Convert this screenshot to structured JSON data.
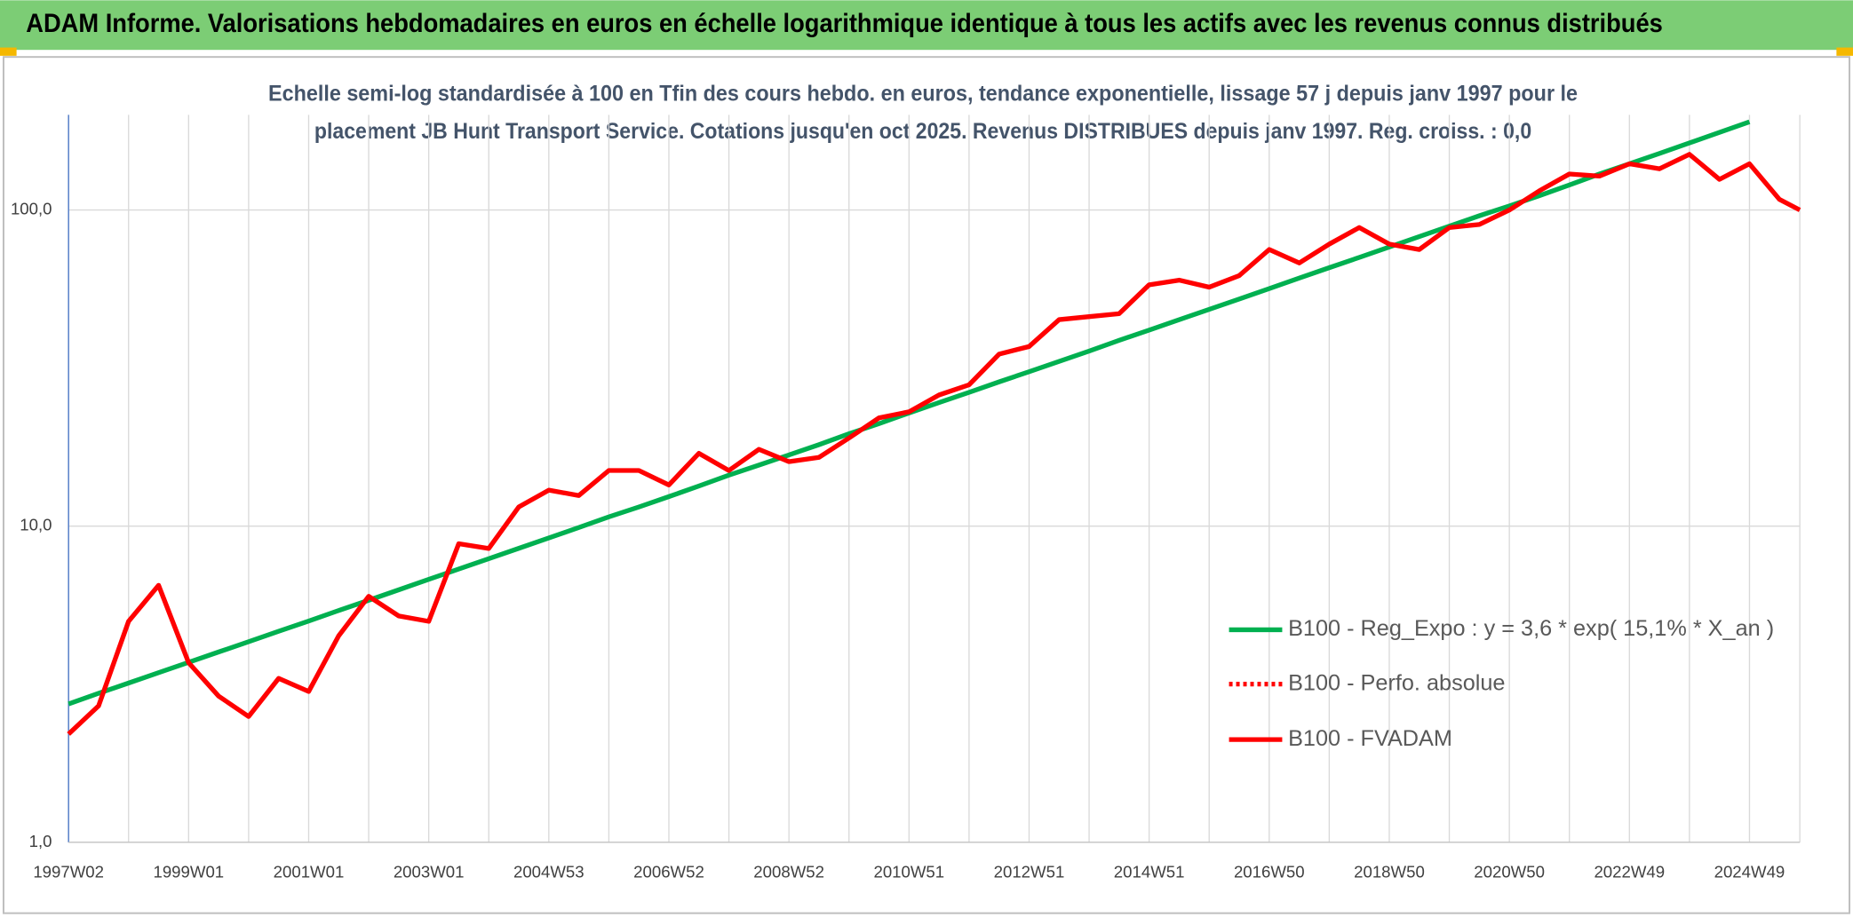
{
  "chart_data": {
    "type": "line",
    "title": "ADAM Informe. Valorisations hebdomadaires en euros en échelle logarithmique identique à tous les actifs avec les revenus connus distribués",
    "subtitle": [
      "Echelle semi-log standardisée à 100 en Tfin des cours hebdo. en euros, tendance exponentielle, lissage 57 j depuis janv 1997 pour le",
      "placement JB Hunt Transport Service. Cotations jusqu'en oct 2025. Revenus DISTRIBUES depuis janv 1997. Reg. croiss. : 0,0"
    ],
    "categories": [
      "1997W02",
      null,
      null,
      null,
      "1999W01",
      null,
      null,
      null,
      "2001W01",
      null,
      null,
      null,
      "2003W01",
      null,
      null,
      null,
      "2004W53",
      null,
      null,
      null,
      "2006W52",
      null,
      null,
      null,
      "2008W52",
      null,
      null,
      null,
      "2010W51",
      null,
      null,
      null,
      "2012W51",
      null,
      null,
      null,
      "2014W51",
      null,
      null,
      null,
      "2016W50",
      null,
      null,
      null,
      "2018W50",
      null,
      null,
      null,
      "2020W50",
      null,
      null,
      null,
      "2022W49",
      null,
      null,
      null,
      "2024W49",
      null,
      null
    ],
    "series": [
      {
        "name": "B100 - Reg_Expo : y = 3,6 * exp( 15,1% *  X_an )",
        "color": "#00b050",
        "style": "solid",
        "values": [
          2.74,
          2.96,
          3.19,
          3.44,
          3.71,
          4.0,
          4.31,
          4.65,
          5.01,
          5.41,
          5.83,
          6.29,
          6.79,
          7.32,
          7.89,
          8.51,
          9.18,
          9.9,
          10.7,
          11.5,
          12.4,
          13.4,
          14.5,
          15.6,
          16.8,
          18.1,
          19.6,
          21.1,
          22.8,
          24.6,
          26.5,
          28.6,
          30.8,
          33.2,
          35.8,
          38.7,
          41.7,
          45.0,
          48.5,
          52.3,
          56.4,
          60.9,
          65.7,
          70.8,
          76.4,
          82.4,
          88.9,
          95.9,
          103,
          111,
          120,
          130,
          140,
          151,
          163,
          176,
          190,
          null,
          null
        ]
      },
      {
        "name": "B100 - Perfo. absolue",
        "color": "#ff0000",
        "style": "dotted",
        "values": [
          null,
          null,
          null,
          null,
          null,
          null,
          null,
          null,
          null,
          null,
          null,
          null,
          null,
          null,
          null,
          null,
          null,
          null,
          null,
          null,
          null,
          null,
          null,
          null,
          null,
          null,
          null,
          null,
          null,
          null,
          null,
          null,
          null,
          null,
          null,
          null,
          null,
          null,
          null,
          null,
          null,
          null,
          null,
          null,
          null,
          null,
          null,
          null,
          null,
          null,
          null,
          null,
          null,
          null,
          null,
          null,
          null,
          null,
          null
        ]
      },
      {
        "name": "B100 - FVADAM",
        "color": "#ff0000",
        "style": "solid",
        "values": [
          2.2,
          2.7,
          5.0,
          6.5,
          3.7,
          2.9,
          2.5,
          3.3,
          3.0,
          4.5,
          6.0,
          5.2,
          5.0,
          8.8,
          8.5,
          11.5,
          13.0,
          12.5,
          15.0,
          15.0,
          13.5,
          17.0,
          15.0,
          17.5,
          16.0,
          16.5,
          19.0,
          22.0,
          23.0,
          26.0,
          28.0,
          35.0,
          37.0,
          45.0,
          46.0,
          47.0,
          58.0,
          60.0,
          57.0,
          62.0,
          75.0,
          68.0,
          78.0,
          88.0,
          78.0,
          75.0,
          88.0,
          90.0,
          100,
          115,
          130,
          128,
          140,
          135,
          150,
          125,
          140,
          108,
          100
        ]
      }
    ],
    "log_y": true,
    "ylim": [
      1,
      200
    ],
    "yticks": [
      {
        "value": 1,
        "label": "1,0"
      },
      {
        "value": 10,
        "label": "10,0"
      },
      {
        "value": 100,
        "label": "100,0"
      }
    ],
    "grid": true,
    "legend": "right"
  }
}
